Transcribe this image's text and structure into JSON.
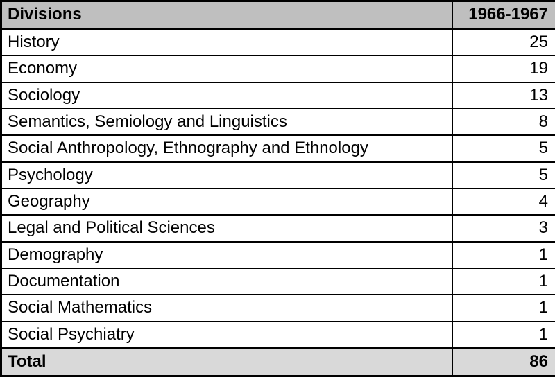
{
  "chart_data": {
    "type": "table",
    "title": "Divisions 1966-1967",
    "columns": [
      "Divisions",
      "1966-1967"
    ],
    "categories": [
      "History",
      "Economy",
      "Sociology",
      "Semantics, Semiology and Linguistics",
      "Social Anthropology, Ethnography and Ethnology",
      "Psychology",
      "Geography",
      "Legal and Political Sciences",
      "Demography",
      "Documentation",
      "Social Mathematics",
      "Social Psychiatry"
    ],
    "values": [
      25,
      19,
      13,
      8,
      5,
      5,
      4,
      3,
      1,
      1,
      1,
      1
    ],
    "total": 86
  },
  "table": {
    "header": {
      "division": "Divisions",
      "period": "1966-1967"
    },
    "rows": [
      {
        "division": "History",
        "value": "25"
      },
      {
        "division": "Economy",
        "value": "19"
      },
      {
        "division": "Sociology",
        "value": "13"
      },
      {
        "division": "Semantics, Semiology and Linguistics",
        "value": "8"
      },
      {
        "division": "Social Anthropology, Ethnography and Ethnology",
        "value": "5"
      },
      {
        "division": "Psychology",
        "value": "5"
      },
      {
        "division": "Geography",
        "value": "4"
      },
      {
        "division": "Legal and Political Sciences",
        "value": "3"
      },
      {
        "division": "Demography",
        "value": "1"
      },
      {
        "division": "Documentation",
        "value": "1"
      },
      {
        "division": "Social Mathematics",
        "value": "1"
      },
      {
        "division": "Social Psychiatry",
        "value": "1"
      }
    ],
    "footer": {
      "label": "Total",
      "value": "86"
    },
    "colors": {
      "header_bg": "#bfbfbf",
      "footer_bg": "#d9d9d9",
      "row_bg": "#ffffff",
      "border": "#000000",
      "text": "#000000"
    }
  }
}
